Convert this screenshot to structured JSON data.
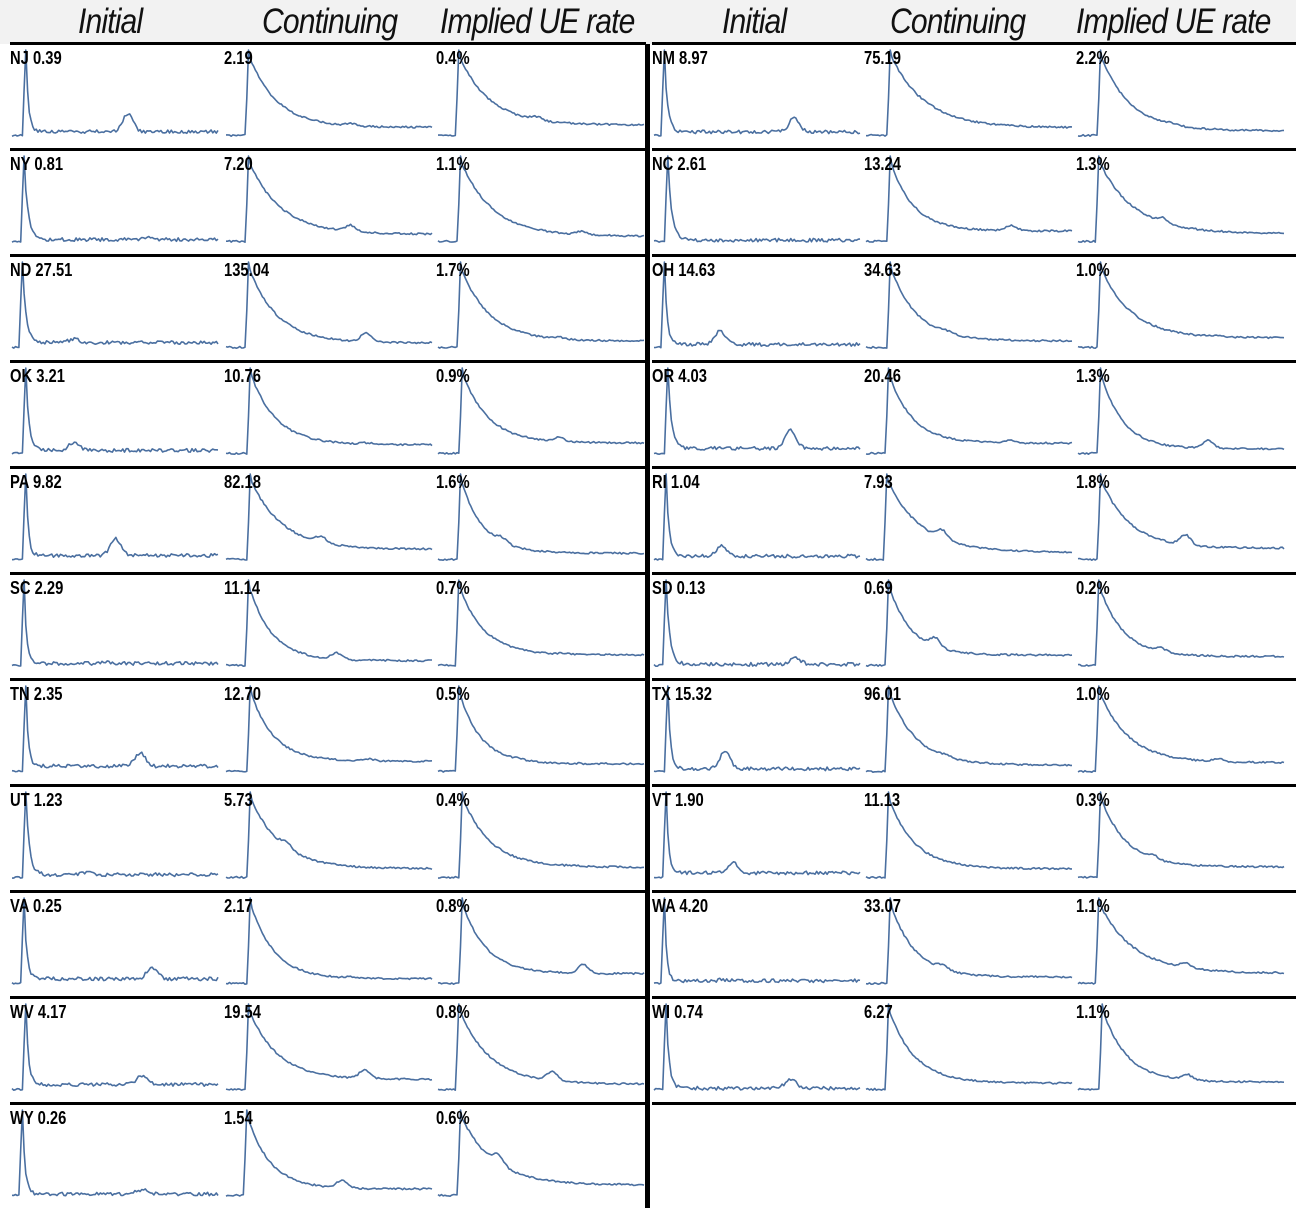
{
  "headers": [
    "Initial",
    "Continuing",
    "Implied UE rate"
  ],
  "colors": {
    "line": "#4a6fa0",
    "separator": "#000000",
    "header_bg": "#f2f2f2"
  },
  "chart_data": {
    "type": "line",
    "series_kinds": [
      "Initial",
      "Continuing",
      "Implied UE rate"
    ],
    "columns": [
      {
        "rows": [
          {
            "state": "NJ",
            "initial": "0.39",
            "continuing": "2.19",
            "ue_rate": "0.4%"
          },
          {
            "state": "NY",
            "initial": "0.81",
            "continuing": "7.20",
            "ue_rate": "1.1%"
          },
          {
            "state": "ND",
            "initial": "27.51",
            "continuing": "135.04",
            "ue_rate": "1.7%"
          },
          {
            "state": "OK",
            "initial": "3.21",
            "continuing": "10.76",
            "ue_rate": "0.9%"
          },
          {
            "state": "PA",
            "initial": "9.82",
            "continuing": "82.18",
            "ue_rate": "1.6%"
          },
          {
            "state": "SC",
            "initial": "2.29",
            "continuing": "11.14",
            "ue_rate": "0.7%"
          },
          {
            "state": "TN",
            "initial": "2.35",
            "continuing": "12.70",
            "ue_rate": "0.5%"
          },
          {
            "state": "UT",
            "initial": "1.23",
            "continuing": "5.73",
            "ue_rate": "0.4%"
          },
          {
            "state": "VA",
            "initial": "0.25",
            "continuing": "2.17",
            "ue_rate": "0.8%"
          },
          {
            "state": "WV",
            "initial": "4.17",
            "continuing": "19.54",
            "ue_rate": "0.8%"
          },
          {
            "state": "WY",
            "initial": "0.26",
            "continuing": "1.54",
            "ue_rate": "0.6%"
          }
        ]
      },
      {
        "rows": [
          {
            "state": "NM",
            "initial": "8.97",
            "continuing": "75.19",
            "ue_rate": "2.2%"
          },
          {
            "state": "NC",
            "initial": "2.61",
            "continuing": "13.24",
            "ue_rate": "1.3%"
          },
          {
            "state": "OH",
            "initial": "14.63",
            "continuing": "34.63",
            "ue_rate": "1.0%"
          },
          {
            "state": "OR",
            "initial": "4.03",
            "continuing": "20.46",
            "ue_rate": "1.3%"
          },
          {
            "state": "RI",
            "initial": "1.04",
            "continuing": "7.93",
            "ue_rate": "1.8%"
          },
          {
            "state": "SD",
            "initial": "0.13",
            "continuing": "0.69",
            "ue_rate": "0.2%"
          },
          {
            "state": "TX",
            "initial": "15.32",
            "continuing": "96.01",
            "ue_rate": "1.0%"
          },
          {
            "state": "VT",
            "initial": "1.90",
            "continuing": "11.13",
            "ue_rate": "0.3%"
          },
          {
            "state": "WA",
            "initial": "4.20",
            "continuing": "33.07",
            "ue_rate": "1.1%"
          },
          {
            "state": "WI",
            "initial": "0.74",
            "continuing": "6.27",
            "ue_rate": "1.1%"
          }
        ]
      }
    ]
  }
}
